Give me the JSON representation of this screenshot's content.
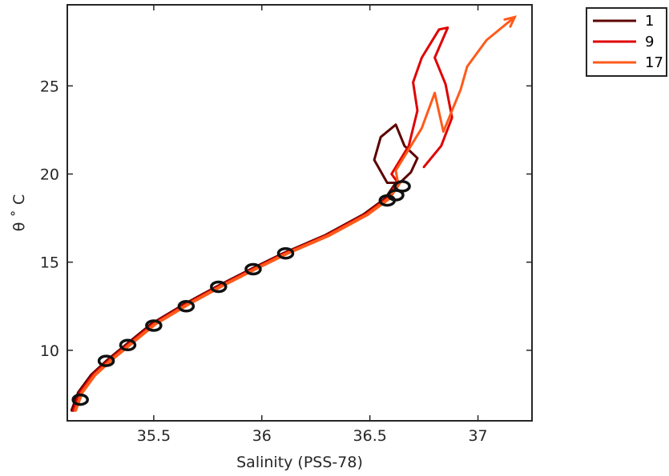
{
  "chart_data": {
    "type": "line",
    "title": "",
    "xlabel": "Salinity (PSS-78)",
    "ylabel": "θ ˚ C",
    "xlim": [
      35.1,
      37.25
    ],
    "ylim": [
      6.0,
      29.6
    ],
    "x_ticks": [
      35.5,
      36,
      36.5,
      37
    ],
    "x_tick_labels": [
      "35.5",
      "36",
      "36.5",
      "37"
    ],
    "y_ticks": [
      10,
      15,
      20,
      25
    ],
    "y_tick_labels": [
      "10",
      "15",
      "20",
      "25"
    ],
    "grid": false,
    "legend_position": "outside top-right",
    "series": [
      {
        "name": "1",
        "color": "#5c0000",
        "upper_points": [
          [
            36.58,
            19.5
          ],
          [
            36.52,
            20.8
          ],
          [
            36.55,
            22.1
          ],
          [
            36.62,
            22.8
          ],
          [
            36.66,
            21.6
          ],
          [
            36.72,
            20.9
          ],
          [
            36.69,
            20.1
          ],
          [
            36.63,
            19.4
          ]
        ]
      },
      {
        "name": "9",
        "color": "#e00000",
        "upper_points": [
          [
            36.6,
            20.0
          ],
          [
            36.68,
            21.6
          ],
          [
            36.72,
            23.6
          ],
          [
            36.7,
            25.2
          ],
          [
            36.74,
            26.6
          ],
          [
            36.82,
            28.2
          ],
          [
            36.86,
            28.3
          ],
          [
            36.8,
            26.6
          ],
          [
            36.85,
            25.1
          ],
          [
            36.88,
            23.2
          ],
          [
            36.83,
            21.6
          ],
          [
            36.75,
            20.4
          ]
        ]
      },
      {
        "name": "17",
        "color": "#ff5a1a",
        "upper_points": [
          [
            36.62,
            20.2
          ],
          [
            36.74,
            22.6
          ],
          [
            36.8,
            24.6
          ],
          [
            36.84,
            22.4
          ],
          [
            36.92,
            24.8
          ],
          [
            36.95,
            26.1
          ],
          [
            37.04,
            27.6
          ],
          [
            37.12,
            28.4
          ],
          [
            37.17,
            28.9
          ]
        ]
      }
    ],
    "common_trunk": [
      [
        35.13,
        6.6
      ],
      [
        35.16,
        7.6
      ],
      [
        35.22,
        8.6
      ],
      [
        35.3,
        9.5
      ],
      [
        35.4,
        10.5
      ],
      [
        35.5,
        11.5
      ],
      [
        35.65,
        12.6
      ],
      [
        35.8,
        13.6
      ],
      [
        35.96,
        14.6
      ],
      [
        36.11,
        15.5
      ],
      [
        36.3,
        16.5
      ],
      [
        36.48,
        17.7
      ],
      [
        36.58,
        18.6
      ],
      [
        36.63,
        19.5
      ]
    ],
    "markers": [
      [
        35.16,
        7.2
      ],
      [
        35.28,
        9.4
      ],
      [
        35.38,
        10.3
      ],
      [
        35.5,
        11.4
      ],
      [
        35.65,
        12.5
      ],
      [
        35.8,
        13.6
      ],
      [
        35.96,
        14.6
      ],
      [
        36.11,
        15.5
      ],
      [
        36.58,
        18.5
      ],
      [
        36.62,
        18.8
      ],
      [
        36.65,
        19.3
      ]
    ]
  }
}
